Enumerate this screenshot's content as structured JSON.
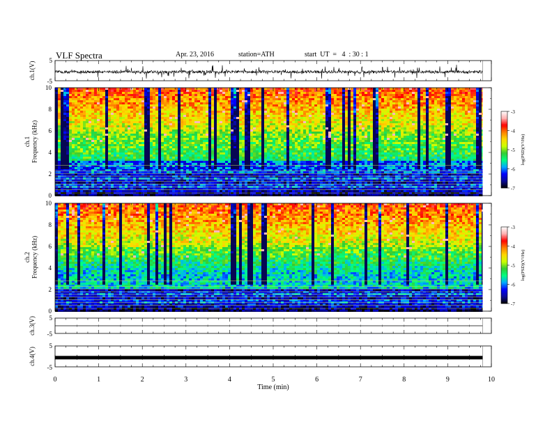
{
  "header": {
    "title": "VLF Spectra",
    "date": "Apr. 23, 2016",
    "station": "station=ATH",
    "start": "start  UT  =   4  : 30 : 1"
  },
  "colors": {
    "colormap": [
      "#000000",
      "#0a0a96",
      "#0000ff",
      "#00aaff",
      "#00ff80",
      "#33cc33",
      "#ccff00",
      "#ffd700",
      "#ff7f00",
      "#ff0000",
      "#ffb0b0",
      "#ffffff"
    ]
  },
  "chart_data": [
    {
      "name": "ch1-waveform",
      "type": "line",
      "ylabel": "ch.1(V)",
      "ylim": [
        -5,
        5
      ],
      "yticks": [
        "5",
        "-5"
      ],
      "xlim": [
        0,
        10
      ],
      "baseline": -0.6,
      "data_end": 9.8
    },
    {
      "name": "ch1-spectrogram",
      "type": "heatmap",
      "ylabel": "ch.1\nFrequency (kHz)",
      "ylim": [
        0,
        10
      ],
      "yticks": [
        "0",
        "2",
        "4",
        "6",
        "8",
        "10"
      ],
      "xlim": [
        0,
        10
      ],
      "data_end": 9.8,
      "colorbar": {
        "label": "log(PSD)(V²/Hz)",
        "range": [
          -7,
          -3
        ],
        "ticks": [
          "-3",
          "-4",
          "-5",
          "-6",
          "-7"
        ]
      }
    },
    {
      "name": "ch2-spectrogram",
      "type": "heatmap",
      "ylabel": "ch.2\nFrequency (kHz)",
      "ylim": [
        0,
        10
      ],
      "yticks": [
        "0",
        "2",
        "4",
        "6",
        "8",
        "10"
      ],
      "xlim": [
        0,
        10
      ],
      "data_end": 9.8,
      "colorbar": {
        "label": "log(PSD)(V²/Hz)",
        "range": [
          -7,
          -3
        ],
        "ticks": [
          "-3",
          "-4",
          "-5",
          "-6",
          "-7"
        ]
      }
    },
    {
      "name": "ch3-waveform",
      "type": "line",
      "ylabel": "ch.3(V)",
      "ylim": [
        -5,
        5
      ],
      "yticks": [
        "5",
        "-5"
      ],
      "xlim": [
        0,
        10
      ],
      "baseline": 0.0,
      "data_end": 9.8
    },
    {
      "name": "ch4-waveform",
      "type": "line",
      "ylabel": "ch.4(V)",
      "ylim": [
        -5,
        5
      ],
      "yticks": [
        "5",
        "-5"
      ],
      "xlim": [
        0,
        10
      ],
      "baseline": -0.6,
      "data_end": 9.8,
      "xlabel": "Time  (min)",
      "xticks": [
        "0",
        "1",
        "2",
        "3",
        "4",
        "5",
        "6",
        "7",
        "8",
        "9",
        "10"
      ]
    }
  ]
}
